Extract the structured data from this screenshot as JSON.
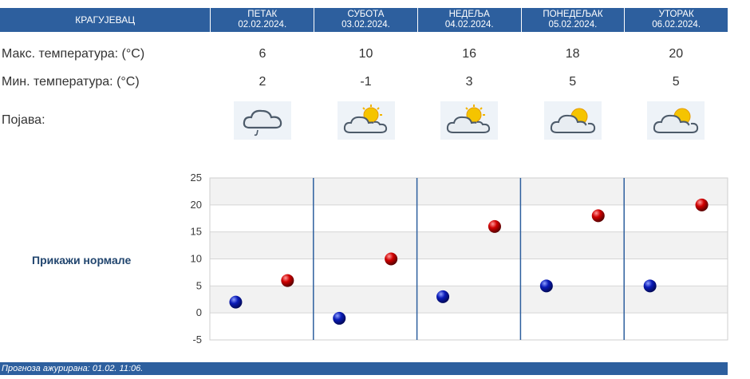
{
  "city": "КРАГУЈЕВАЦ",
  "days": [
    {
      "name": "ПЕТАК",
      "date": "02.02.2024.",
      "max": "6",
      "min": "2",
      "icon": "cloud-rain-icon"
    },
    {
      "name": "СУБОТА",
      "date": "03.02.2024.",
      "max": "10",
      "min": "-1",
      "icon": "partly-cloudy-icon"
    },
    {
      "name": "НЕДЕЉА",
      "date": "04.02.2024.",
      "max": "16",
      "min": "3",
      "icon": "partly-cloudy-icon"
    },
    {
      "name": "ПОНЕДЕЉАК",
      "date": "05.02.2024.",
      "max": "18",
      "min": "5",
      "icon": "partly-cloudy-icon"
    },
    {
      "name": "УТОРАК",
      "date": "06.02.2024.",
      "max": "20",
      "min": "5",
      "icon": "partly-cloudy-icon"
    }
  ],
  "labels": {
    "max": "Макс. температура: (°C)",
    "min": "Мин. температура: (°C)",
    "phenomenon": "Појава:"
  },
  "show_normals": "Прикажи нормале",
  "footer": "Прогноза ажурирана:  01.02. 11:06.",
  "colors": {
    "header_bg": "#2d5f9e",
    "max_marker": "#d10000",
    "min_marker": "#0a1bb8"
  },
  "chart_data": {
    "type": "scatter",
    "categories": [
      "02.02.2024.",
      "03.02.2024.",
      "04.02.2024.",
      "05.02.2024.",
      "06.02.2024."
    ],
    "series": [
      {
        "values": [
          2,
          -1,
          3,
          5,
          5
        ]
      },
      {
        "values": [
          6,
          10,
          16,
          18,
          20
        ]
      }
    ],
    "ylim": [
      -5,
      25
    ],
    "yticks": [
      -5,
      0,
      5,
      10,
      15,
      20,
      25
    ],
    "grid": true
  }
}
